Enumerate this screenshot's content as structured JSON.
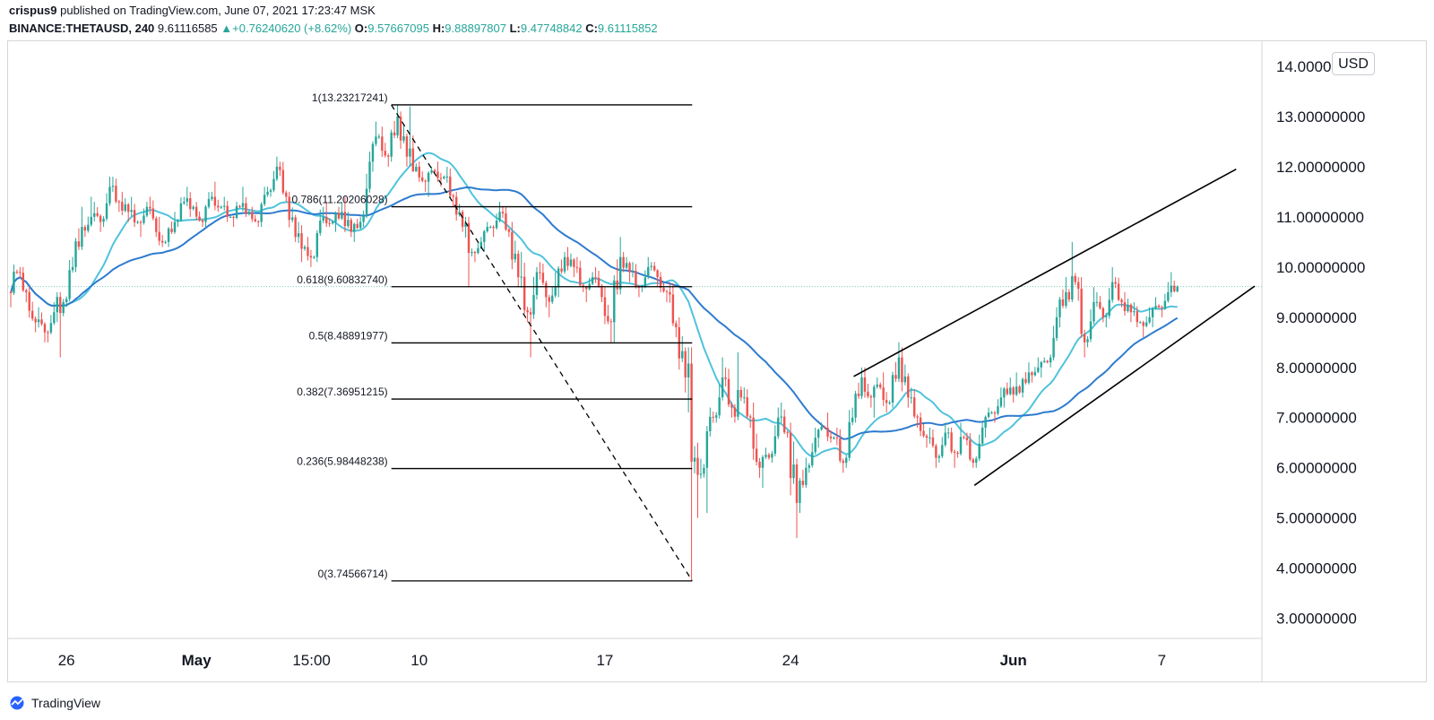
{
  "header": {
    "author": "crispus9",
    "published": "published on TradingView.com, June 07, 2021 17:23:47 MSK",
    "symbol": "BINANCE:THETAUSD, 240",
    "last": "9.61116585",
    "arrow": "▲",
    "change": "+0.76240620 (+8.62%)",
    "o_label": "O:",
    "o_value": "9.57667095",
    "h_label": "H:",
    "h_value": "9.88897807",
    "l_label": "L:",
    "l_value": "9.47748842",
    "c_label": "C:",
    "c_value": "9.61115852"
  },
  "currency": "USD",
  "footer": {
    "brand": "TradingView"
  },
  "colors": {
    "up": "#26a69a",
    "down": "#ef5350",
    "ma_fast": "#4fc3dc",
    "ma_slow": "#2e7bcf",
    "fib_line": "#000000",
    "trend_line": "#000000",
    "last_price_line": "#7fc8bd"
  },
  "chart_data": {
    "type": "candlestick",
    "symbol": "BINANCE:THETAUSD",
    "interval": "240",
    "ylim": [
      2.6,
      14.5
    ],
    "y_axis_labels": [
      "14.00000000",
      "13.00000000",
      "12.00000000",
      "11.00000000",
      "10.00000000",
      "9.00000000",
      "8.00000000",
      "7.00000000",
      "6.00000000",
      "5.00000000",
      "4.00000000",
      "3.00000000"
    ],
    "y_axis_values": [
      14,
      13,
      12,
      11,
      10,
      9,
      8,
      7,
      6,
      5,
      4,
      3
    ],
    "x_axis_labels": [
      {
        "label": "26",
        "t": 3.0
      },
      {
        "label": "May",
        "t": 10.0
      },
      {
        "label": "15:00",
        "t": 16.2
      },
      {
        "label": "10",
        "t": 22.0
      },
      {
        "label": "17",
        "t": 32.0
      },
      {
        "label": "24",
        "t": 42.0
      },
      {
        "label": "Jun",
        "t": 54.0
      },
      {
        "label": "7",
        "t": 62.0
      }
    ],
    "t_range": [
      0,
      67
    ],
    "last_price": 9.61116585,
    "fibonacci": {
      "start_t": 20.5,
      "end_t": 36.7,
      "levels": [
        {
          "label": "1(13.23217241)",
          "value": 13.23217241
        },
        {
          "label": "0.786(11.20206028)",
          "value": 11.20206028
        },
        {
          "label": "0.618(9.60832740)",
          "value": 9.6083274
        },
        {
          "label": "0.5(8.48891977)",
          "value": 8.48891977
        },
        {
          "label": "0.382(7.36951215)",
          "value": 7.36951215
        },
        {
          "label": "0.236(5.98448238)",
          "value": 5.98448238
        },
        {
          "label": "0(3.74566714)",
          "value": 3.74566714
        }
      ]
    },
    "diagonal_dashed": {
      "t1": 20.5,
      "v1": 13.23,
      "t2": 36.7,
      "v2": 3.75
    },
    "trend_lines": [
      {
        "name": "upper-channel",
        "t1": 45.4,
        "v1": 7.82,
        "t2": 66.0,
        "v2": 11.95
      },
      {
        "name": "lower-channel",
        "t1": 51.9,
        "v1": 5.65,
        "t2": 67.0,
        "v2": 9.62
      }
    ],
    "ma_fast_name": "MA fast",
    "ma_slow_name": "MA slow",
    "daily": [
      {
        "t": 0.0,
        "o": 9.5,
        "h": 10.05,
        "l": 9.2,
        "c": 9.9
      },
      {
        "t": 0.5,
        "o": 9.9,
        "h": 10.0,
        "l": 9.3,
        "c": 9.5
      },
      {
        "t": 1.0,
        "o": 9.5,
        "h": 9.6,
        "l": 8.7,
        "c": 8.9
      },
      {
        "t": 1.5,
        "o": 8.9,
        "h": 9.2,
        "l": 8.5,
        "c": 8.7
      },
      {
        "t": 2.0,
        "o": 8.7,
        "h": 9.3,
        "l": 8.5,
        "c": 9.1
      },
      {
        "t": 2.5,
        "o": 9.1,
        "h": 9.5,
        "l": 8.2,
        "c": 9.3
      },
      {
        "t": 3.0,
        "o": 9.3,
        "h": 10.2,
        "l": 9.2,
        "c": 10.0
      },
      {
        "t": 3.5,
        "o": 10.0,
        "h": 11.2,
        "l": 9.9,
        "c": 10.8
      },
      {
        "t": 4.0,
        "o": 10.8,
        "h": 11.4,
        "l": 10.6,
        "c": 11.0
      },
      {
        "t": 4.5,
        "o": 11.0,
        "h": 11.3,
        "l": 10.7,
        "c": 10.9
      },
      {
        "t": 5.0,
        "o": 10.9,
        "h": 11.8,
        "l": 10.8,
        "c": 11.6
      },
      {
        "t": 5.5,
        "o": 11.6,
        "h": 11.8,
        "l": 11.1,
        "c": 11.3
      },
      {
        "t": 6.0,
        "o": 11.3,
        "h": 11.5,
        "l": 10.9,
        "c": 11.1
      },
      {
        "t": 6.5,
        "o": 11.1,
        "h": 11.4,
        "l": 10.8,
        "c": 10.9
      },
      {
        "t": 7.0,
        "o": 10.9,
        "h": 11.3,
        "l": 10.6,
        "c": 11.2
      },
      {
        "t": 7.5,
        "o": 11.2,
        "h": 11.4,
        "l": 10.6,
        "c": 10.7
      },
      {
        "t": 8.0,
        "o": 10.7,
        "h": 11.0,
        "l": 10.4,
        "c": 10.5
      },
      {
        "t": 8.5,
        "o": 10.5,
        "h": 11.1,
        "l": 10.4,
        "c": 10.9
      },
      {
        "t": 9.0,
        "o": 10.9,
        "h": 11.4,
        "l": 10.8,
        "c": 11.3
      },
      {
        "t": 9.5,
        "o": 11.3,
        "h": 11.6,
        "l": 11.0,
        "c": 11.2
      },
      {
        "t": 10.0,
        "o": 11.2,
        "h": 11.3,
        "l": 10.8,
        "c": 10.9
      },
      {
        "t": 10.5,
        "o": 10.9,
        "h": 11.5,
        "l": 10.8,
        "c": 11.4
      },
      {
        "t": 11.0,
        "o": 11.4,
        "h": 11.7,
        "l": 11.1,
        "c": 11.2
      },
      {
        "t": 11.5,
        "o": 11.2,
        "h": 11.4,
        "l": 10.9,
        "c": 11.0
      },
      {
        "t": 12.0,
        "o": 11.0,
        "h": 11.3,
        "l": 10.8,
        "c": 11.2
      },
      {
        "t": 12.5,
        "o": 11.2,
        "h": 11.6,
        "l": 11.0,
        "c": 11.1
      },
      {
        "t": 13.0,
        "o": 11.1,
        "h": 11.2,
        "l": 10.8,
        "c": 10.9
      },
      {
        "t": 13.5,
        "o": 10.9,
        "h": 11.6,
        "l": 10.8,
        "c": 11.5
      },
      {
        "t": 14.0,
        "o": 11.5,
        "h": 12.2,
        "l": 11.4,
        "c": 12.0
      },
      {
        "t": 14.5,
        "o": 12.0,
        "h": 12.1,
        "l": 11.3,
        "c": 11.4
      },
      {
        "t": 15.0,
        "o": 11.4,
        "h": 11.5,
        "l": 10.5,
        "c": 10.6
      },
      {
        "t": 15.5,
        "o": 10.6,
        "h": 10.9,
        "l": 10.1,
        "c": 10.4
      },
      {
        "t": 16.0,
        "o": 10.4,
        "h": 10.6,
        "l": 10.0,
        "c": 10.2
      },
      {
        "t": 16.5,
        "o": 10.2,
        "h": 11.2,
        "l": 10.1,
        "c": 11.0
      },
      {
        "t": 17.0,
        "o": 11.0,
        "h": 11.3,
        "l": 10.8,
        "c": 10.9
      },
      {
        "t": 17.5,
        "o": 10.9,
        "h": 11.3,
        "l": 10.7,
        "c": 11.1
      },
      {
        "t": 18.0,
        "o": 11.1,
        "h": 11.4,
        "l": 10.6,
        "c": 10.7
      },
      {
        "t": 18.5,
        "o": 10.7,
        "h": 11.0,
        "l": 10.5,
        "c": 10.9
      },
      {
        "t": 19.0,
        "o": 10.9,
        "h": 12.3,
        "l": 10.8,
        "c": 12.1
      },
      {
        "t": 19.5,
        "o": 12.1,
        "h": 12.9,
        "l": 11.9,
        "c": 12.6
      },
      {
        "t": 20.0,
        "o": 12.6,
        "h": 12.8,
        "l": 12.0,
        "c": 12.2
      },
      {
        "t": 20.5,
        "o": 12.2,
        "h": 13.23,
        "l": 12.1,
        "c": 13.0
      },
      {
        "t": 21.0,
        "o": 13.0,
        "h": 13.1,
        "l": 12.0,
        "c": 12.2
      },
      {
        "t": 21.5,
        "o": 12.2,
        "h": 13.2,
        "l": 11.9,
        "c": 12.0
      },
      {
        "t": 22.0,
        "o": 12.0,
        "h": 12.1,
        "l": 11.5,
        "c": 11.7
      },
      {
        "t": 22.5,
        "o": 11.7,
        "h": 12.0,
        "l": 11.4,
        "c": 11.9
      },
      {
        "t": 23.0,
        "o": 11.9,
        "h": 12.1,
        "l": 11.6,
        "c": 11.8
      },
      {
        "t": 23.5,
        "o": 11.8,
        "h": 12.0,
        "l": 11.2,
        "c": 11.4
      },
      {
        "t": 24.0,
        "o": 11.4,
        "h": 11.5,
        "l": 10.7,
        "c": 10.8
      },
      {
        "t": 24.5,
        "o": 10.8,
        "h": 11.0,
        "l": 9.6,
        "c": 10.3
      },
      {
        "t": 25.0,
        "o": 10.3,
        "h": 10.6,
        "l": 10.1,
        "c": 10.5
      },
      {
        "t": 25.5,
        "o": 10.5,
        "h": 10.9,
        "l": 10.3,
        "c": 10.8
      },
      {
        "t": 26.0,
        "o": 10.8,
        "h": 11.3,
        "l": 10.6,
        "c": 11.1
      },
      {
        "t": 26.5,
        "o": 11.1,
        "h": 11.2,
        "l": 10.6,
        "c": 10.7
      },
      {
        "t": 27.0,
        "o": 10.7,
        "h": 10.9,
        "l": 9.6,
        "c": 9.8
      },
      {
        "t": 27.5,
        "o": 9.8,
        "h": 10.3,
        "l": 8.9,
        "c": 9.1
      },
      {
        "t": 28.0,
        "o": 9.1,
        "h": 10.0,
        "l": 8.2,
        "c": 9.9
      },
      {
        "t": 28.5,
        "o": 9.9,
        "h": 10.1,
        "l": 9.2,
        "c": 9.4
      },
      {
        "t": 29.0,
        "o": 9.4,
        "h": 9.9,
        "l": 9.0,
        "c": 9.6
      },
      {
        "t": 29.5,
        "o": 9.6,
        "h": 10.3,
        "l": 9.4,
        "c": 10.2
      },
      {
        "t": 30.0,
        "o": 10.2,
        "h": 10.4,
        "l": 9.8,
        "c": 10.0
      },
      {
        "t": 30.5,
        "o": 10.0,
        "h": 10.2,
        "l": 9.5,
        "c": 9.6
      },
      {
        "t": 31.0,
        "o": 9.6,
        "h": 9.9,
        "l": 9.3,
        "c": 9.8
      },
      {
        "t": 31.5,
        "o": 9.8,
        "h": 10.0,
        "l": 9.3,
        "c": 9.4
      },
      {
        "t": 32.0,
        "o": 9.4,
        "h": 9.6,
        "l": 8.5,
        "c": 8.9
      },
      {
        "t": 32.5,
        "o": 8.9,
        "h": 10.6,
        "l": 8.5,
        "c": 10.2
      },
      {
        "t": 33.0,
        "o": 10.2,
        "h": 10.3,
        "l": 9.7,
        "c": 9.9
      },
      {
        "t": 33.5,
        "o": 9.9,
        "h": 10.1,
        "l": 9.4,
        "c": 9.6
      },
      {
        "t": 34.0,
        "o": 9.6,
        "h": 10.2,
        "l": 9.5,
        "c": 10.0
      },
      {
        "t": 34.5,
        "o": 10.0,
        "h": 10.1,
        "l": 9.6,
        "c": 9.8
      },
      {
        "t": 35.0,
        "o": 9.8,
        "h": 9.9,
        "l": 9.3,
        "c": 9.5
      },
      {
        "t": 35.5,
        "o": 9.5,
        "h": 9.7,
        "l": 8.6,
        "c": 8.8
      },
      {
        "t": 36.0,
        "o": 8.8,
        "h": 9.0,
        "l": 7.5,
        "c": 7.8
      },
      {
        "t": 36.5,
        "o": 7.8,
        "h": 8.4,
        "l": 3.75,
        "c": 6.2
      },
      {
        "t": 37.0,
        "o": 6.2,
        "h": 6.5,
        "l": 5.0,
        "c": 6.0
      },
      {
        "t": 37.5,
        "o": 6.0,
        "h": 7.2,
        "l": 5.1,
        "c": 7.0
      },
      {
        "t": 38.0,
        "o": 7.0,
        "h": 8.2,
        "l": 6.9,
        "c": 7.8
      },
      {
        "t": 38.5,
        "o": 7.8,
        "h": 8.0,
        "l": 7.0,
        "c": 7.2
      },
      {
        "t": 39.0,
        "o": 7.2,
        "h": 8.3,
        "l": 6.9,
        "c": 7.4
      },
      {
        "t": 39.5,
        "o": 7.4,
        "h": 7.6,
        "l": 6.8,
        "c": 7.0
      },
      {
        "t": 40.0,
        "o": 7.0,
        "h": 7.3,
        "l": 5.8,
        "c": 6.0
      },
      {
        "t": 40.5,
        "o": 6.0,
        "h": 6.4,
        "l": 5.6,
        "c": 6.2
      },
      {
        "t": 41.0,
        "o": 6.2,
        "h": 7.2,
        "l": 6.1,
        "c": 7.0
      },
      {
        "t": 41.5,
        "o": 7.0,
        "h": 7.3,
        "l": 6.6,
        "c": 6.7
      },
      {
        "t": 42.0,
        "o": 6.7,
        "h": 6.9,
        "l": 4.6,
        "c": 5.3
      },
      {
        "t": 42.5,
        "o": 5.3,
        "h": 6.2,
        "l": 5.1,
        "c": 6.0
      },
      {
        "t": 43.0,
        "o": 6.0,
        "h": 6.8,
        "l": 5.9,
        "c": 6.6
      },
      {
        "t": 43.5,
        "o": 6.6,
        "h": 6.9,
        "l": 6.4,
        "c": 6.8
      },
      {
        "t": 44.0,
        "o": 6.8,
        "h": 7.1,
        "l": 6.5,
        "c": 6.6
      },
      {
        "t": 44.5,
        "o": 6.6,
        "h": 6.8,
        "l": 5.9,
        "c": 6.1
      },
      {
        "t": 45.0,
        "o": 6.1,
        "h": 7.2,
        "l": 6.0,
        "c": 7.0
      },
      {
        "t": 45.5,
        "o": 7.0,
        "h": 8.0,
        "l": 6.9,
        "c": 7.8
      },
      {
        "t": 46.0,
        "o": 7.8,
        "h": 8.0,
        "l": 7.2,
        "c": 7.4
      },
      {
        "t": 46.5,
        "o": 7.4,
        "h": 7.8,
        "l": 7.0,
        "c": 7.6
      },
      {
        "t": 47.0,
        "o": 7.6,
        "h": 7.9,
        "l": 7.1,
        "c": 7.3
      },
      {
        "t": 47.5,
        "o": 7.3,
        "h": 8.5,
        "l": 7.2,
        "c": 8.2
      },
      {
        "t": 48.0,
        "o": 8.2,
        "h": 8.4,
        "l": 7.2,
        "c": 7.4
      },
      {
        "t": 48.5,
        "o": 7.4,
        "h": 7.6,
        "l": 6.8,
        "c": 7.0
      },
      {
        "t": 49.0,
        "o": 7.0,
        "h": 7.1,
        "l": 6.4,
        "c": 6.6
      },
      {
        "t": 49.5,
        "o": 6.6,
        "h": 6.8,
        "l": 6.0,
        "c": 6.2
      },
      {
        "t": 50.0,
        "o": 6.2,
        "h": 6.9,
        "l": 6.1,
        "c": 6.7
      },
      {
        "t": 50.5,
        "o": 6.7,
        "h": 6.8,
        "l": 6.0,
        "c": 6.3
      },
      {
        "t": 51.0,
        "o": 6.3,
        "h": 6.9,
        "l": 6.2,
        "c": 6.6
      },
      {
        "t": 51.5,
        "o": 6.6,
        "h": 6.7,
        "l": 6.0,
        "c": 6.1
      },
      {
        "t": 52.0,
        "o": 6.1,
        "h": 6.9,
        "l": 6.0,
        "c": 6.8
      },
      {
        "t": 52.5,
        "o": 6.8,
        "h": 7.2,
        "l": 6.6,
        "c": 7.1
      },
      {
        "t": 53.0,
        "o": 7.1,
        "h": 7.6,
        "l": 6.9,
        "c": 7.4
      },
      {
        "t": 53.5,
        "o": 7.4,
        "h": 7.8,
        "l": 7.2,
        "c": 7.6
      },
      {
        "t": 54.0,
        "o": 7.6,
        "h": 7.9,
        "l": 7.3,
        "c": 7.5
      },
      {
        "t": 54.5,
        "o": 7.5,
        "h": 8.1,
        "l": 7.4,
        "c": 7.9
      },
      {
        "t": 55.0,
        "o": 7.9,
        "h": 8.2,
        "l": 7.7,
        "c": 8.0
      },
      {
        "t": 55.5,
        "o": 8.0,
        "h": 8.2,
        "l": 7.8,
        "c": 8.1
      },
      {
        "t": 56.0,
        "o": 8.1,
        "h": 9.2,
        "l": 8.0,
        "c": 9.0
      },
      {
        "t": 56.5,
        "o": 9.0,
        "h": 9.8,
        "l": 8.8,
        "c": 9.5
      },
      {
        "t": 57.0,
        "o": 9.5,
        "h": 10.5,
        "l": 9.3,
        "c": 9.7
      },
      {
        "t": 57.5,
        "o": 9.7,
        "h": 9.8,
        "l": 8.2,
        "c": 8.5
      },
      {
        "t": 58.0,
        "o": 8.5,
        "h": 9.6,
        "l": 8.4,
        "c": 9.3
      },
      {
        "t": 58.5,
        "o": 9.3,
        "h": 9.5,
        "l": 8.9,
        "c": 9.0
      },
      {
        "t": 59.0,
        "o": 9.0,
        "h": 10.0,
        "l": 8.8,
        "c": 9.7
      },
      {
        "t": 59.5,
        "o": 9.7,
        "h": 9.8,
        "l": 9.2,
        "c": 9.3
      },
      {
        "t": 60.0,
        "o": 9.3,
        "h": 9.5,
        "l": 8.9,
        "c": 9.1
      },
      {
        "t": 60.5,
        "o": 9.1,
        "h": 9.3,
        "l": 8.8,
        "c": 8.9
      },
      {
        "t": 61.0,
        "o": 8.9,
        "h": 9.2,
        "l": 8.6,
        "c": 9.0
      },
      {
        "t": 61.5,
        "o": 9.0,
        "h": 9.4,
        "l": 8.8,
        "c": 9.2
      },
      {
        "t": 62.0,
        "o": 9.2,
        "h": 9.7,
        "l": 9.0,
        "c": 9.5
      },
      {
        "t": 62.5,
        "o": 9.5,
        "h": 9.9,
        "l": 9.4,
        "c": 9.61
      }
    ]
  }
}
